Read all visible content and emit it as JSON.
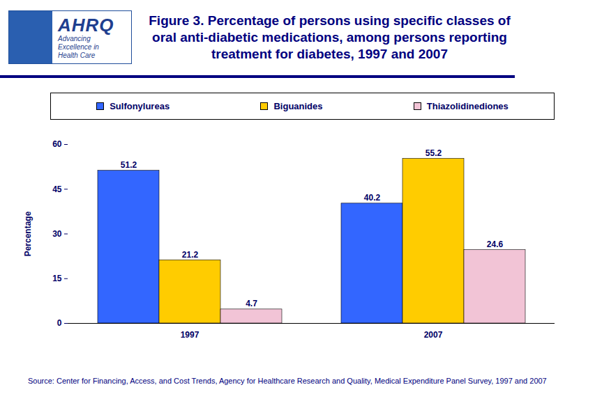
{
  "chart_data": {
    "type": "bar",
    "title": "Figure 3. Percentage of persons using specific classes of oral anti-diabetic medications, among persons reporting treatment for diabetes, 1997 and 2007",
    "annotations": [
      "AHRQ",
      "Advancing Excellence in Health Care"
    ],
    "source": "Source: Center for Financing, Access, and Cost Trends, Agency for Healthcare Research and Quality, Medical Expenditure Panel Survey, 1997 and 2007",
    "categories": [
      "1997",
      "2007"
    ],
    "series": [
      {
        "name": "Sulfonylureas",
        "color": "#3366ff",
        "values": [
          51.2,
          40.2
        ]
      },
      {
        "name": "Biguanides",
        "color": "#ffcc00",
        "values": [
          21.2,
          55.2
        ]
      },
      {
        "name": "Thiazolidinediones",
        "color": "#f2c4d6",
        "values": [
          4.7,
          24.6
        ]
      }
    ],
    "ylabel": "Percentage",
    "ylim": [
      0,
      60
    ],
    "yticks": [
      0,
      15,
      30,
      45,
      60
    ],
    "grid": false,
    "legend": "top",
    "data_labels": true
  }
}
